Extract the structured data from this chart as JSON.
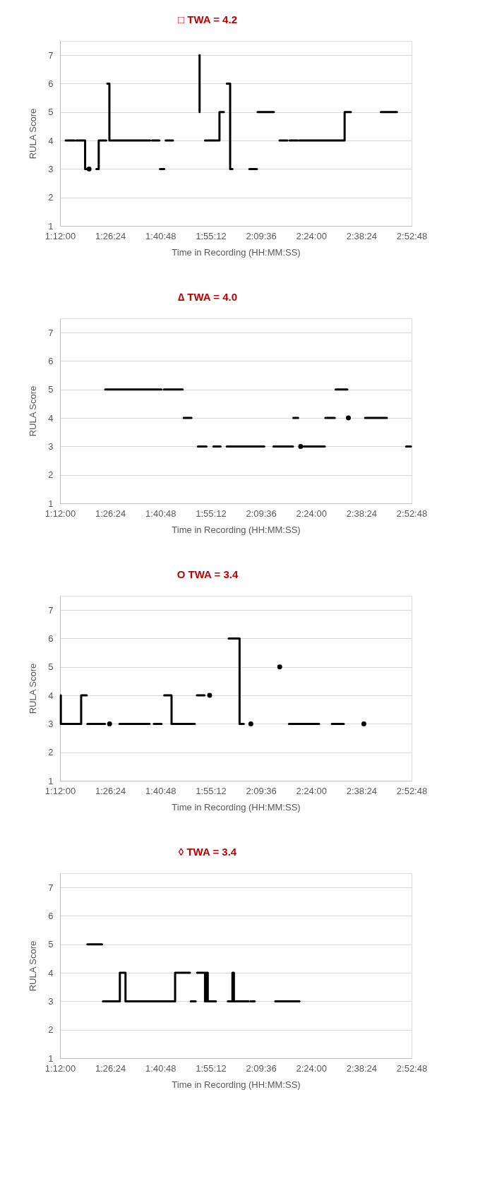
{
  "chart_data": [
    {
      "type": "line",
      "title": "□ TWA = 4.2",
      "xlabel": "Time in Recording (HH:MM:SS)",
      "ylabel": "RULA Score",
      "xlim": [
        1.2,
        2.88
      ],
      "ylim": [
        1,
        7.5
      ],
      "xticks": [
        {
          "value": 1.2,
          "label": "1:12:00"
        },
        {
          "value": 1.44,
          "label": "1:26:24"
        },
        {
          "value": 1.68,
          "label": "1:40:48"
        },
        {
          "value": 1.92,
          "label": "1:55:12"
        },
        {
          "value": 2.16,
          "label": "2:09:36"
        },
        {
          "value": 2.4,
          "label": "2:24:00"
        },
        {
          "value": 2.64,
          "label": "2:38:24"
        },
        {
          "value": 2.88,
          "label": "2:52:48"
        }
      ],
      "yticks": [
        1,
        2,
        3,
        4,
        5,
        6,
        7
      ],
      "grid": "y",
      "legend": false,
      "line_style": "solid",
      "marker": "none",
      "series": [
        {
          "color": "#000000",
          "x": [
            1.227,
            1.27
          ],
          "values": [
            4,
            4
          ]
        },
        {
          "color": "#000000",
          "x": [
            1.277,
            1.32,
            1.32,
            1.328
          ],
          "values": [
            4,
            4,
            3,
            3
          ]
        },
        {
          "color": "#000000",
          "type": "scatter",
          "marker": "circle",
          "x": [
            1.339
          ],
          "values": [
            3
          ]
        },
        {
          "color": "#000000",
          "x": [
            1.374,
            1.385,
            1.385,
            1.421
          ],
          "values": [
            3,
            3,
            4,
            4
          ]
        },
        {
          "color": "#000000",
          "x": [
            1.426,
            1.436,
            1.436,
            1.631
          ],
          "values": [
            6,
            6,
            4,
            4
          ]
        },
        {
          "color": "#000000",
          "x": [
            1.64,
            1.675
          ],
          "values": [
            4,
            4
          ]
        },
        {
          "color": "#000000",
          "x": [
            1.678,
            1.698
          ],
          "values": [
            3,
            3
          ]
        },
        {
          "color": "#000000",
          "x": [
            1.705,
            1.74
          ],
          "values": [
            4,
            4
          ]
        },
        {
          "color": "#000000",
          "x": [
            1.867,
            1.867
          ],
          "values": [
            5,
            7
          ]
        },
        {
          "color": "#000000",
          "x": [
            1.893,
            1.962,
            1.962,
            1.983
          ],
          "values": [
            4,
            4,
            5,
            5
          ]
        },
        {
          "color": "#000000",
          "x": [
            1.997,
            2.013,
            2.013,
            2.024
          ],
          "values": [
            6,
            6,
            3,
            3
          ]
        },
        {
          "color": "#000000",
          "x": [
            2.105,
            2.141
          ],
          "values": [
            3,
            3
          ]
        },
        {
          "color": "#000000",
          "x": [
            2.144,
            2.222
          ],
          "values": [
            5,
            5
          ]
        },
        {
          "color": "#000000",
          "x": [
            2.249,
            2.287
          ],
          "values": [
            4,
            4
          ]
        },
        {
          "color": "#000000",
          "x": [
            2.297,
            2.337
          ],
          "values": [
            4,
            4
          ]
        },
        {
          "color": "#000000",
          "x": [
            2.344,
            2.56,
            2.56,
            2.59
          ],
          "values": [
            4,
            4,
            5,
            5
          ]
        },
        {
          "color": "#000000",
          "x": [
            2.733,
            2.81
          ],
          "values": [
            5,
            5
          ]
        }
      ]
    },
    {
      "type": "line",
      "title": "∆ TWA = 4.0",
      "xlabel": "Time in Recording (HH:MM:SS)",
      "ylabel": "RULA Score",
      "xlim": [
        1.2,
        2.88
      ],
      "ylim": [
        1,
        7.5
      ],
      "xticks": [
        {
          "value": 1.2,
          "label": "1:12:00"
        },
        {
          "value": 1.44,
          "label": "1:26:24"
        },
        {
          "value": 1.68,
          "label": "1:40:48"
        },
        {
          "value": 1.92,
          "label": "1:55:12"
        },
        {
          "value": 2.16,
          "label": "2:09:36"
        },
        {
          "value": 2.4,
          "label": "2:24:00"
        },
        {
          "value": 2.64,
          "label": "2:38:24"
        },
        {
          "value": 2.88,
          "label": "2:52:48"
        }
      ],
      "yticks": [
        1,
        2,
        3,
        4,
        5,
        6,
        7
      ],
      "grid": "y",
      "legend": false,
      "line_style": "solid",
      "marker": "none",
      "series": [
        {
          "color": "#000000",
          "x": [
            1.416,
            1.685
          ],
          "values": [
            5,
            5
          ]
        },
        {
          "color": "#000000",
          "x": [
            1.696,
            1.786
          ],
          "values": [
            5,
            5
          ]
        },
        {
          "color": "#000000",
          "x": [
            1.791,
            1.828
          ],
          "values": [
            4,
            4
          ]
        },
        {
          "color": "#000000",
          "x": [
            1.859,
            1.9
          ],
          "values": [
            3,
            3
          ]
        },
        {
          "color": "#000000",
          "x": [
            1.933,
            1.967
          ],
          "values": [
            3,
            3
          ]
        },
        {
          "color": "#000000",
          "x": [
            1.997,
            2.176
          ],
          "values": [
            3,
            3
          ]
        },
        {
          "color": "#000000",
          "x": [
            2.22,
            2.313
          ],
          "values": [
            3,
            3
          ]
        },
        {
          "color": "#000000",
          "x": [
            2.315,
            2.338
          ],
          "values": [
            4,
            4
          ]
        },
        {
          "color": "#000000",
          "type": "scatter",
          "marker": "circle",
          "x": [
            2.35
          ],
          "values": [
            3
          ]
        },
        {
          "color": "#000000",
          "x": [
            2.364,
            2.465
          ],
          "values": [
            3,
            3
          ]
        },
        {
          "color": "#000000",
          "x": [
            2.468,
            2.513
          ],
          "values": [
            4,
            4
          ]
        },
        {
          "color": "#000000",
          "x": [
            2.517,
            2.573
          ],
          "values": [
            5,
            5
          ]
        },
        {
          "color": "#000000",
          "type": "scatter",
          "marker": "circle",
          "x": [
            2.578
          ],
          "values": [
            4
          ]
        },
        {
          "color": "#000000",
          "x": [
            2.658,
            2.762
          ],
          "values": [
            4,
            4
          ]
        },
        {
          "color": "#000000",
          "x": [
            2.854,
            2.877
          ],
          "values": [
            3,
            3
          ]
        }
      ]
    },
    {
      "type": "line",
      "title": "O TWA = 3.4",
      "xlabel": "Time in Recording (HH:MM:SS)",
      "ylabel": "RULA Score",
      "xlim": [
        1.2,
        2.88
      ],
      "ylim": [
        1,
        7.5
      ],
      "xticks": [
        {
          "value": 1.2,
          "label": "1:12:00"
        },
        {
          "value": 1.44,
          "label": "1:26:24"
        },
        {
          "value": 1.68,
          "label": "1:40:48"
        },
        {
          "value": 1.92,
          "label": "1:55:12"
        },
        {
          "value": 2.16,
          "label": "2:09:36"
        },
        {
          "value": 2.4,
          "label": "2:24:00"
        },
        {
          "value": 2.64,
          "label": "2:38:24"
        },
        {
          "value": 2.88,
          "label": "2:52:48"
        }
      ],
      "yticks": [
        1,
        2,
        3,
        4,
        5,
        6,
        7
      ],
      "grid": "y",
      "legend": false,
      "line_style": "solid",
      "marker": "none",
      "series": [
        {
          "color": "#000000",
          "x": [
            1.204,
            1.204,
            1.301,
            1.301,
            1.328
          ],
          "values": [
            4,
            3,
            3,
            4,
            4
          ]
        },
        {
          "color": "#000000",
          "x": [
            1.331,
            1.415
          ],
          "values": [
            3,
            3
          ]
        },
        {
          "color": "#000000",
          "type": "scatter",
          "marker": "circle",
          "x": [
            1.437
          ],
          "values": [
            3
          ]
        },
        {
          "color": "#000000",
          "x": [
            1.484,
            1.628
          ],
          "values": [
            3,
            3
          ]
        },
        {
          "color": "#000000",
          "x": [
            1.648,
            1.685
          ],
          "values": [
            3,
            3
          ]
        },
        {
          "color": "#000000",
          "x": [
            1.698,
            1.733,
            1.733,
            1.844
          ],
          "values": [
            4,
            4,
            3,
            3
          ]
        },
        {
          "color": "#000000",
          "x": [
            1.854,
            1.891
          ],
          "values": [
            4,
            4
          ]
        },
        {
          "color": "#000000",
          "type": "scatter",
          "marker": "circle",
          "x": [
            1.915
          ],
          "values": [
            4
          ]
        },
        {
          "color": "#000000",
          "x": [
            2.006,
            2.058,
            2.058,
            2.078
          ],
          "values": [
            6,
            6,
            3,
            3
          ]
        },
        {
          "color": "#000000",
          "type": "scatter",
          "marker": "circle",
          "x": [
            2.112
          ],
          "values": [
            3
          ]
        },
        {
          "color": "#000000",
          "type": "scatter",
          "marker": "circle",
          "x": [
            2.25
          ],
          "values": [
            5
          ]
        },
        {
          "color": "#000000",
          "x": [
            2.294,
            2.438
          ],
          "values": [
            3,
            3
          ]
        },
        {
          "color": "#000000",
          "x": [
            2.499,
            2.556
          ],
          "values": [
            3,
            3
          ]
        },
        {
          "color": "#000000",
          "type": "scatter",
          "marker": "circle",
          "x": [
            2.652
          ],
          "values": [
            3
          ]
        }
      ]
    },
    {
      "type": "line",
      "title": "◊ TWA = 3.4",
      "xlabel": "Time in Recording (HH:MM:SS)",
      "ylabel": "RULA Score",
      "xlim": [
        1.2,
        2.88
      ],
      "ylim": [
        1,
        7.5
      ],
      "xticks": [
        {
          "value": 1.2,
          "label": "1:12:00"
        },
        {
          "value": 1.44,
          "label": "1:26:24"
        },
        {
          "value": 1.68,
          "label": "1:40:48"
        },
        {
          "value": 1.92,
          "label": "1:55:12"
        },
        {
          "value": 2.16,
          "label": "2:09:36"
        },
        {
          "value": 2.4,
          "label": "2:24:00"
        },
        {
          "value": 2.64,
          "label": "2:38:24"
        },
        {
          "value": 2.88,
          "label": "2:52:48"
        }
      ],
      "yticks": [
        1,
        2,
        3,
        4,
        5,
        6,
        7
      ],
      "grid": "y",
      "legend": false,
      "line_style": "solid",
      "marker": "none",
      "series": [
        {
          "color": "#000000",
          "x": [
            1.331,
            1.401
          ],
          "values": [
            5,
            5
          ]
        },
        {
          "color": "#000000",
          "x": [
            1.405,
            1.486,
            1.486,
            1.513,
            1.513,
            1.75,
            1.75,
            1.821
          ],
          "values": [
            3,
            3,
            4,
            4,
            3,
            3,
            4,
            4
          ]
        },
        {
          "color": "#000000",
          "x": [
            1.825,
            1.848
          ],
          "values": [
            3,
            3
          ]
        },
        {
          "color": "#000000",
          "x": [
            1.855,
            1.893,
            1.893,
            1.898,
            1.898,
            1.906,
            1.906,
            1.945
          ],
          "values": [
            4,
            4,
            3,
            3,
            4,
            4,
            3,
            3
          ]
        },
        {
          "color": "#000000",
          "x": [
            2.002,
            2.024,
            2.024,
            2.031,
            2.031,
            2.101
          ],
          "values": [
            3,
            3,
            4,
            4,
            3,
            3
          ]
        },
        {
          "color": "#000000",
          "x": [
            2.11,
            2.13
          ],
          "values": [
            3,
            3
          ]
        },
        {
          "color": "#000000",
          "x": [
            2.229,
            2.344
          ],
          "values": [
            3,
            3
          ]
        }
      ]
    }
  ]
}
